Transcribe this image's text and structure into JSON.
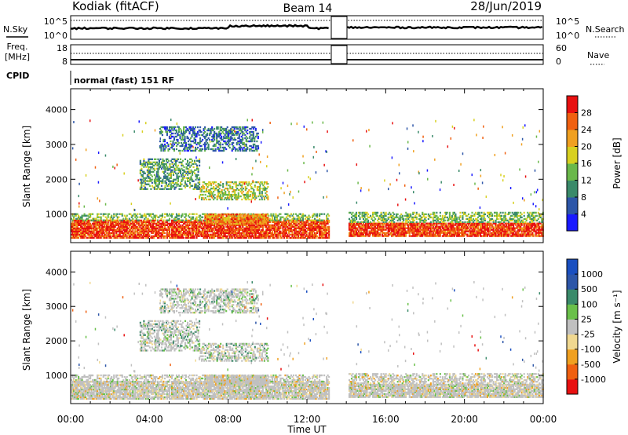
{
  "header": {
    "title": "Kodiak (fitACF)",
    "beam": "Beam 14",
    "date": "28/Jun/2019"
  },
  "strip_labels": {
    "nsky": "N.Sky",
    "nsearch": "N.Search",
    "freq_line1": "Freq.",
    "freq_line2": "[MHz]",
    "nave": "Nave",
    "cpid": "CPID",
    "cpid_value": "normal (fast) 151 RF",
    "noise_ticks_left": [
      "10^5",
      "10^0"
    ],
    "noise_ticks_right": [
      "10^5",
      "10^0"
    ],
    "freq_ticks_left": [
      "18",
      "8"
    ],
    "freq_ticks_right": [
      "60",
      "0"
    ]
  },
  "colors": {
    "power_scale": [
      "#1a1aff",
      "#2d56a8",
      "#3a8a6a",
      "#6ab84a",
      "#d8d020",
      "#f0a020",
      "#f06010",
      "#e81010"
    ],
    "velocity_scale": [
      "#e81010",
      "#f06010",
      "#f0a020",
      "#f0d890",
      "#c0c0c0",
      "#6ac04a",
      "#3a8a6a",
      "#2d56a8",
      "#1a4fc0"
    ],
    "noise_line": "#000000"
  },
  "chart_data": [
    {
      "type": "heatmap",
      "name": "power",
      "ylabel": "Slant Range [km]",
      "yticks": [
        1000,
        2000,
        3000,
        4000
      ],
      "ylim": [
        180,
        4600
      ],
      "xlim": [
        0,
        24
      ],
      "colorbar": {
        "label": "Power [dB]",
        "ticks": [
          4,
          8,
          12,
          16,
          20,
          24,
          28
        ],
        "range": [
          0,
          32
        ]
      },
      "data_gap_hours": [
        13.1,
        14.05
      ],
      "echo_regions": [
        {
          "t0": 0.0,
          "t1": 13.1,
          "r0": 300,
          "r1": 800,
          "value_db": 28
        },
        {
          "t0": 0.0,
          "t1": 13.1,
          "r0": 800,
          "r1": 1000,
          "value_db": 14
        },
        {
          "t0": 6.8,
          "t1": 10.0,
          "r0": 700,
          "r1": 1000,
          "value_db": 24
        },
        {
          "t0": 14.05,
          "t1": 24.0,
          "r0": 350,
          "r1": 750,
          "value_db": 28
        },
        {
          "t0": 14.05,
          "t1": 24.0,
          "r0": 750,
          "r1": 1050,
          "value_db": 14
        },
        {
          "t0": 3.5,
          "t1": 6.5,
          "r0": 1700,
          "r1": 2600,
          "value_db": 12
        },
        {
          "t0": 6.5,
          "t1": 10.0,
          "r0": 1400,
          "r1": 1900,
          "value_db": 16
        },
        {
          "t0": 4.5,
          "t1": 9.5,
          "r0": 2800,
          "r1": 3500,
          "value_db": 8
        }
      ]
    },
    {
      "type": "heatmap",
      "name": "velocity",
      "ylabel": "Slant Range [km]",
      "yticks": [
        1000,
        2000,
        3000,
        4000
      ],
      "ylim": [
        180,
        4600
      ],
      "xlim": [
        0,
        24
      ],
      "xticks": [
        "00:00",
        "04:00",
        "08:00",
        "12:00",
        "16:00",
        "20:00",
        "00:00"
      ],
      "xlabel": "Time UT",
      "colorbar": {
        "label": "Velocity [m s⁻¹]",
        "ticks": [
          -1000,
          -500,
          -100,
          -25,
          25,
          100,
          500,
          1000
        ]
      },
      "data_gap_hours": [
        13.1,
        14.05
      ]
    }
  ]
}
